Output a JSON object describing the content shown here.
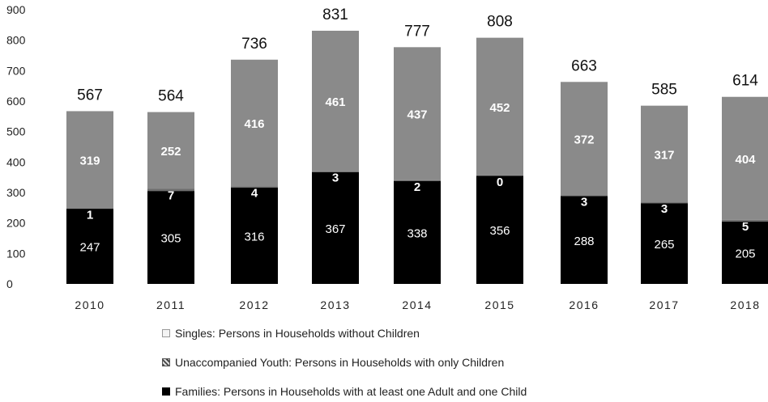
{
  "chart_data": {
    "type": "bar",
    "stacked": true,
    "categories": [
      "2010",
      "2011",
      "2012",
      "2013",
      "2014",
      "2015",
      "2016",
      "2017",
      "2018"
    ],
    "series": [
      {
        "name": "Families: Persons in Households with at least one Adult and one Child",
        "values": [
          247,
          305,
          316,
          367,
          338,
          356,
          288,
          265,
          205
        ],
        "color": "#000000"
      },
      {
        "name": "Unaccompanied Youth: Persons in Households with only Children",
        "values": [
          1,
          7,
          4,
          3,
          2,
          0,
          3,
          3,
          5
        ],
        "color": "#6e6e6e"
      },
      {
        "name": "Singles: Persons in Households without Children",
        "values": [
          319,
          252,
          416,
          461,
          437,
          452,
          372,
          317,
          404
        ],
        "color": "#8a8a8a"
      }
    ],
    "totals": [
      567,
      564,
      736,
      831,
      777,
      808,
      663,
      585,
      614
    ],
    "yticks": [
      0,
      100,
      200,
      300,
      400,
      500,
      600,
      700,
      800,
      900
    ],
    "ylim": [
      0,
      900
    ],
    "legend_position": "bottom",
    "grid": false
  },
  "legend": [
    {
      "label": "Singles: Persons in Households without Children",
      "icon": "light-square-icon"
    },
    {
      "label": "Unaccompanied Youth: Persons in Households with only Children",
      "icon": "hatched-square-icon"
    },
    {
      "label": "Families: Persons in Households with at least one Adult and one Child",
      "icon": "black-square-icon"
    }
  ]
}
